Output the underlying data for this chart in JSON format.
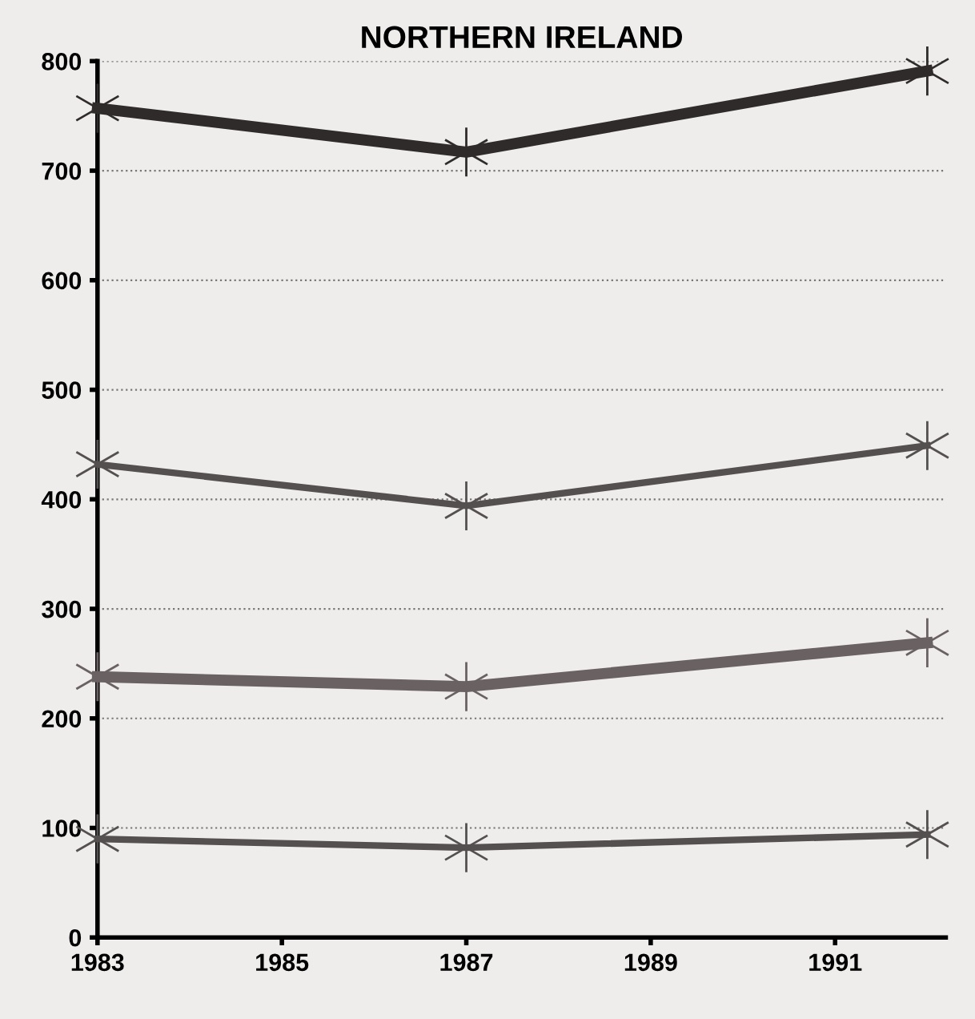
{
  "chart_data": {
    "type": "line",
    "title": "NORTHERN IRELAND",
    "x": [
      1983,
      1987,
      1992
    ],
    "series": [
      {
        "color": "#2f2b2b",
        "values": [
          757,
          717,
          791
        ]
      },
      {
        "color": "#555050",
        "values": [
          432,
          394,
          449
        ]
      },
      {
        "color": "#6a6262",
        "values": [
          238,
          229,
          269
        ]
      },
      {
        "color": "#555050",
        "values": [
          90,
          82,
          94
        ]
      }
    ],
    "xlim": [
      1983,
      1992.2
    ],
    "xticks": [
      1983,
      1985,
      1987,
      1989,
      1991
    ],
    "ylim": [
      0,
      800
    ],
    "yticks": [
      0,
      100,
      200,
      300,
      400,
      500,
      600,
      700,
      800
    ],
    "grid": "y",
    "marker": "cross",
    "line_style": "solid"
  }
}
